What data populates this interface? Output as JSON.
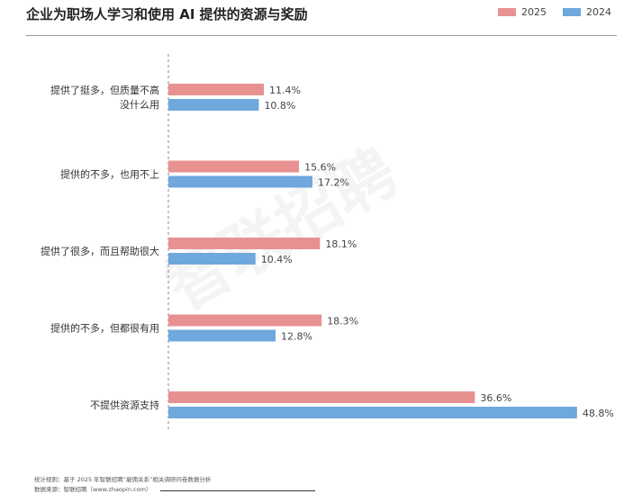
{
  "title": "企业为职场人学习和使用 AI 提供的资源与奖励",
  "chart_data": {
    "type": "bar",
    "orientation": "horizontal",
    "title": "企业为职场人学习和使用 AI 提供的资源与奖励",
    "categories": [
      [
        "提供了挺多，但质量不高",
        "没什么用"
      ],
      [
        "提供的不多，也用不上"
      ],
      [
        "提供了很多，而且帮助很大"
      ],
      [
        "提供的不多，但都很有用"
      ],
      [
        "不提供资源支持"
      ]
    ],
    "series": [
      {
        "name": "2025",
        "color": "#e89191",
        "values": [
          11.4,
          15.6,
          18.1,
          18.3,
          36.6
        ]
      },
      {
        "name": "2024",
        "color": "#6fa8dc",
        "values": [
          10.8,
          17.2,
          10.4,
          12.8,
          48.8
        ]
      }
    ],
    "unit": "%",
    "legend": "top-right"
  },
  "watermark": "智联招聘",
  "footer": {
    "line1": "统计规则：基于 2025 年智联招聘“雇佣关系”相关调研问卷数据分析",
    "line2": "数据来源：智联招聘（www.zhaopin.com）"
  }
}
